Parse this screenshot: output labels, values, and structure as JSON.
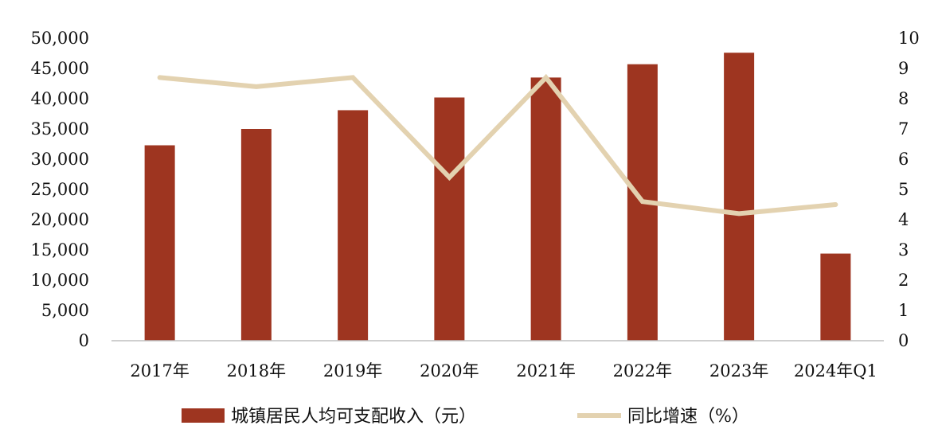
{
  "chart_data": {
    "type": "bar",
    "title": "",
    "xlabel": "",
    "ylabel": "",
    "categories": [
      "2017年",
      "2018年",
      "2019年",
      "2020年",
      "2021年",
      "2022年",
      "2023年",
      "2024年Q1"
    ],
    "series": [
      {
        "name": "城镇居民人均可支配收入（元）",
        "type": "bar",
        "axis": "left",
        "color": "#9E3520",
        "values": [
          32300,
          35000,
          38100,
          40200,
          43500,
          45700,
          47600,
          14400
        ]
      },
      {
        "name": "同比增速（%）",
        "type": "line",
        "axis": "right",
        "color": "#E3D2B0",
        "values": [
          8.7,
          8.4,
          8.7,
          5.4,
          8.7,
          4.6,
          4.2,
          4.5
        ]
      }
    ],
    "ylim_left": [
      0,
      50000
    ],
    "ylim_right": [
      0,
      10
    ],
    "yticks_left": [
      "0",
      "5,000",
      "10,000",
      "15,000",
      "20,000",
      "25,000",
      "30,000",
      "35,000",
      "40,000",
      "45,000",
      "50,000"
    ],
    "yticks_right": [
      "0",
      "1",
      "2",
      "3",
      "4",
      "5",
      "6",
      "7",
      "8",
      "9",
      "10"
    ],
    "grid": false,
    "legend": "bottom"
  }
}
